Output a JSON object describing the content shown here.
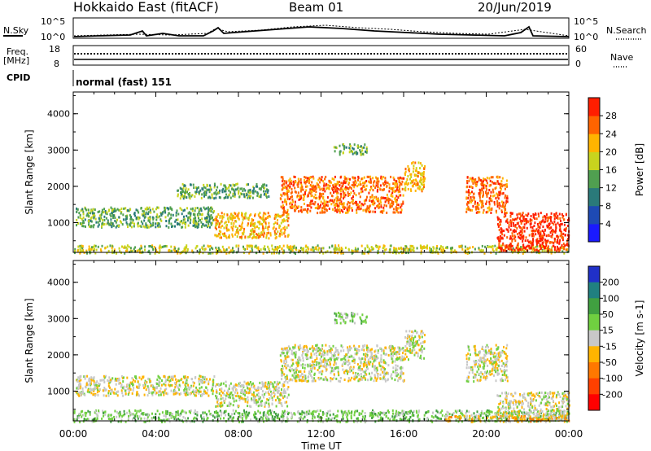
{
  "header": {
    "title": "Hokkaido East (fitACF)",
    "beam": "Beam 01",
    "date": "20/Jun/2019"
  },
  "status_panel": {
    "nsky_label": "N.Sky",
    "nsearch_label": "N.Search",
    "freq_label_1": "Freq.",
    "freq_label_2": "[MHz]",
    "nave_label": "Nave",
    "cpid_label": "CPID",
    "cpid_text": "normal (fast) 151",
    "noise_tick_top": "10^5",
    "noise_tick_bottom": "10^0",
    "freq_ticks": [
      "18",
      "8"
    ],
    "nave_ticks": [
      "60",
      "0"
    ]
  },
  "chart_data": [
    {
      "type": "heatmap",
      "name": "power",
      "xlabel": "Time UT",
      "ylabel": "Slant Range [km]",
      "xlim": [
        0,
        24
      ],
      "ylim": [
        180,
        4600
      ],
      "x_tick_labels": [
        "00:00",
        "04:00",
        "08:00",
        "12:00",
        "16:00",
        "20:00",
        "00:00"
      ],
      "y_tick_labels": [
        "1000",
        "2000",
        "3000",
        "4000"
      ],
      "colorbar": {
        "label": "Power [dB]",
        "ticks": [
          "4",
          "8",
          "12",
          "16",
          "20",
          "24",
          "28"
        ],
        "levels": [
          {
            "from": 0,
            "to": 4,
            "color": "#1a1aff"
          },
          {
            "from": 4,
            "to": 8,
            "color": "#1e4ab4"
          },
          {
            "from": 8,
            "to": 12,
            "color": "#2a7a7a"
          },
          {
            "from": 12,
            "to": 16,
            "color": "#50a050"
          },
          {
            "from": 16,
            "to": 20,
            "color": "#c8d41e"
          },
          {
            "from": 20,
            "to": 24,
            "color": "#ffb400"
          },
          {
            "from": 24,
            "to": 28,
            "color": "#ff6400"
          },
          {
            "from": 28,
            "to": 32,
            "color": "#ff1e00"
          }
        ]
      },
      "regions": [
        {
          "t0": 0.0,
          "t1": 24.0,
          "r0": 180,
          "r1": 400,
          "level": 4
        },
        {
          "t0": 0.1,
          "t1": 6.8,
          "r0": 900,
          "r1": 1450,
          "level": 3
        },
        {
          "t0": 6.8,
          "t1": 10.4,
          "r0": 600,
          "r1": 1300,
          "level": 5
        },
        {
          "t0": 5.0,
          "t1": 9.5,
          "r0": 1700,
          "r1": 2100,
          "level": 3
        },
        {
          "t0": 10.0,
          "t1": 16.0,
          "r0": 1300,
          "r1": 2300,
          "level": 6
        },
        {
          "t0": 16.0,
          "t1": 17.0,
          "r0": 1900,
          "r1": 2700,
          "level": 5
        },
        {
          "t0": 12.6,
          "t1": 14.2,
          "r0": 2900,
          "r1": 3200,
          "level": 3
        },
        {
          "t0": 19.0,
          "t1": 21.0,
          "r0": 1300,
          "r1": 2300,
          "level": 6
        },
        {
          "t0": 20.5,
          "t1": 24.0,
          "r0": 250,
          "r1": 1300,
          "level": 7
        }
      ]
    },
    {
      "type": "heatmap",
      "name": "velocity",
      "xlabel": "Time UT",
      "ylabel": "Slant Range [km]",
      "xlim": [
        0,
        24
      ],
      "ylim": [
        180,
        4600
      ],
      "x_tick_labels": [
        "00:00",
        "04:00",
        "08:00",
        "12:00",
        "16:00",
        "20:00",
        "00:00"
      ],
      "y_tick_labels": [
        "1000",
        "2000",
        "3000",
        "4000"
      ],
      "colorbar": {
        "label": "Velocity [m s-1]",
        "ticks": [
          "200",
          "100",
          "50",
          "15",
          "-15",
          "-50",
          "-100",
          "-200"
        ],
        "levels": [
          {
            "from": 200,
            "to": 250,
            "color": "#2030c8"
          },
          {
            "from": 100,
            "to": 200,
            "color": "#208080"
          },
          {
            "from": 50,
            "to": 100,
            "color": "#40a040"
          },
          {
            "from": 15,
            "to": 50,
            "color": "#70d040"
          },
          {
            "from": -15,
            "to": 15,
            "color": "#c8c8c8"
          },
          {
            "from": -50,
            "to": -15,
            "color": "#ffb400"
          },
          {
            "from": -100,
            "to": -50,
            "color": "#ff7800"
          },
          {
            "from": -200,
            "to": -100,
            "color": "#ff4000"
          },
          {
            "from": -250,
            "to": -200,
            "color": "#ff0000"
          }
        ]
      },
      "regions": [
        {
          "t0": 0.0,
          "t1": 24.0,
          "r0": 180,
          "r1": 500,
          "level": 3
        },
        {
          "t0": 0.1,
          "t1": 6.8,
          "r0": 900,
          "r1": 1450,
          "level": 4
        },
        {
          "t0": 6.8,
          "t1": 10.4,
          "r0": 600,
          "r1": 1300,
          "level": 4
        },
        {
          "t0": 10.0,
          "t1": 16.0,
          "r0": 1300,
          "r1": 2300,
          "level": 4
        },
        {
          "t0": 16.0,
          "t1": 17.0,
          "r0": 1900,
          "r1": 2700,
          "level": 4
        },
        {
          "t0": 12.6,
          "t1": 14.2,
          "r0": 2900,
          "r1": 3200,
          "level": 3
        },
        {
          "t0": 19.0,
          "t1": 21.0,
          "r0": 1300,
          "r1": 2300,
          "level": 4
        },
        {
          "t0": 20.5,
          "t1": 24.0,
          "r0": 250,
          "r1": 1000,
          "level": 4
        },
        {
          "t0": 18.0,
          "t1": 24.0,
          "r0": 180,
          "r1": 350,
          "level": 5
        }
      ]
    }
  ]
}
